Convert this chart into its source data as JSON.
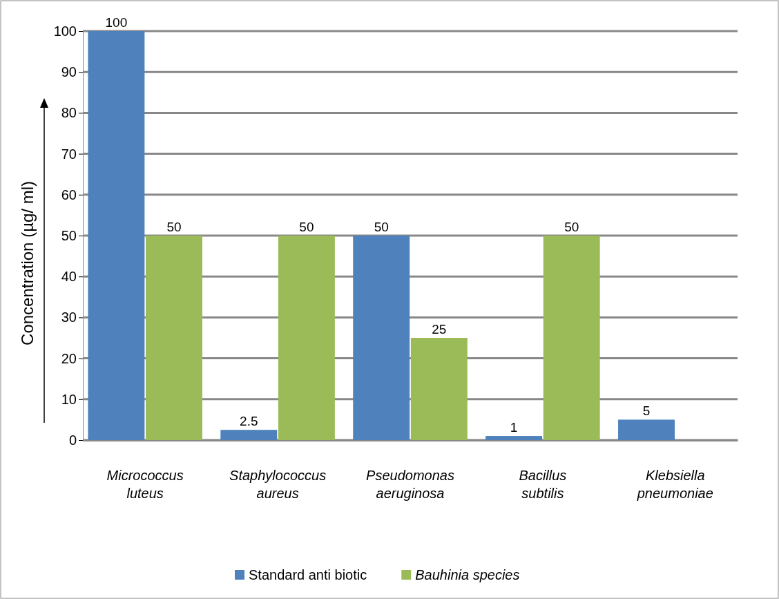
{
  "chart_data": {
    "type": "bar",
    "ylabel": "Concentration (µg/ ml)",
    "categories": [
      "Micrococcus luteus",
      "Staphylococcus aureus",
      "Pseudomonas aeruginosa",
      "Bacillus subtilis",
      "Klebsiella pneumoniae"
    ],
    "series": [
      {
        "name": "Standard anti biotic",
        "color": "#4f81bd",
        "values": [
          100,
          2.5,
          50,
          1,
          5
        ]
      },
      {
        "name": "Bauhinia species",
        "color": "#9bbb59",
        "values": [
          50,
          50,
          25,
          50,
          null
        ]
      }
    ],
    "ylim": [
      0,
      100
    ],
    "yticks": [
      0,
      10,
      20,
      30,
      40,
      50,
      60,
      70,
      80,
      90,
      100
    ],
    "grid": "y",
    "legend": "bottom",
    "data_labels": true
  }
}
